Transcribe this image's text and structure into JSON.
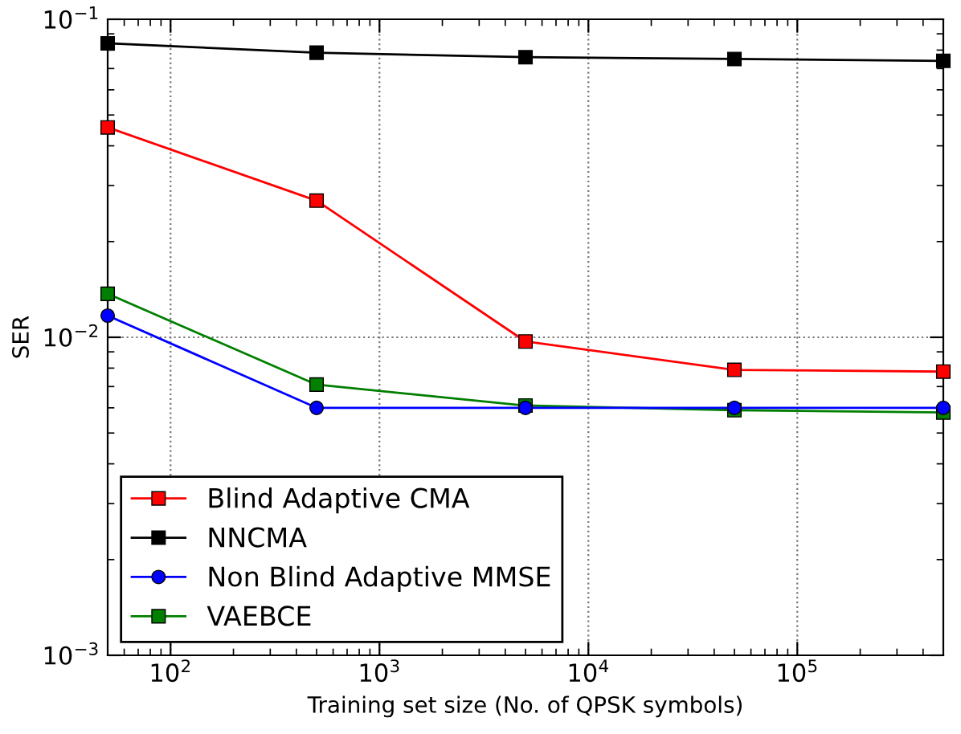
{
  "chart_data": {
    "type": "line",
    "xlabel": "Training set size (No. of QPSK symbols)",
    "ylabel": "SER",
    "log": "xy",
    "grid": true,
    "legend": "bottom left",
    "x": [
      50,
      500,
      5000,
      50000,
      500000
    ],
    "xlim": [
      50,
      500000
    ],
    "ylim": [
      0.001,
      0.1
    ],
    "xticks": [
      {
        "value": 100,
        "label": "10$^{2}$"
      },
      {
        "value": 1000,
        "label": "10$^{3}$"
      },
      {
        "value": 10000,
        "label": "10$^{4}$"
      },
      {
        "value": 100000,
        "label": "10$^{5}$"
      }
    ],
    "yticks": [
      {
        "value": 0.001,
        "label": "10$^{−3}$"
      },
      {
        "value": 0.01,
        "label": "10$^{−2}$"
      },
      {
        "value": 0.1,
        "label": "10$^{−1}$"
      }
    ],
    "series": [
      {
        "name": "Blind Adaptive CMA",
        "color": "#ff0000",
        "marker": "square",
        "values": [
          0.0457,
          0.0269,
          0.0097,
          0.0079,
          0.0078
        ]
      },
      {
        "name": "NNCMA",
        "color": "#000000",
        "marker": "square",
        "values": [
          0.084,
          0.0785,
          0.076,
          0.075,
          0.074
        ]
      },
      {
        "name": "Non Blind Adaptive MMSE",
        "color": "#0000ff",
        "marker": "circle",
        "values": [
          0.0117,
          0.006,
          0.006,
          0.006,
          0.006
        ]
      },
      {
        "name": "VAEBCE",
        "color": "#007f00",
        "marker": "square",
        "values": [
          0.0137,
          0.0071,
          0.0061,
          0.0059,
          0.0058
        ]
      }
    ]
  }
}
